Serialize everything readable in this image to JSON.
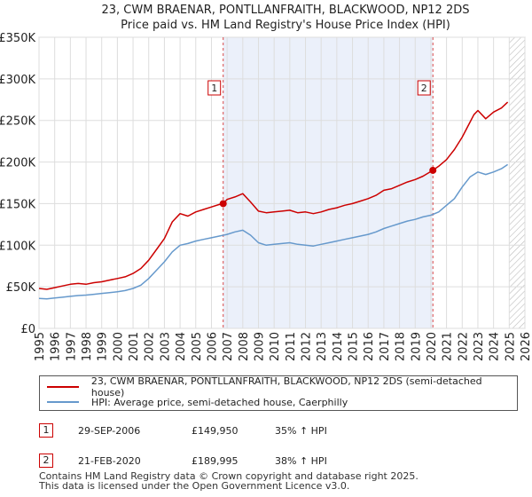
{
  "chart_data": {
    "type": "line",
    "title": "23, CWM BRAENAR, PONTLLANFRAITH, BLACKWOOD, NP12 2DS",
    "subtitle": "Price paid vs. HM Land Registry's House Price Index (HPI)",
    "xlabel": "",
    "ylabel": "",
    "xlim": [
      1995,
      2026
    ],
    "ylim": [
      0,
      350000
    ],
    "grid": true,
    "x_ticks": [
      "1995",
      "1996",
      "1997",
      "1998",
      "1999",
      "2000",
      "2001",
      "2002",
      "2003",
      "2004",
      "2005",
      "2006",
      "2007",
      "2008",
      "2009",
      "2010",
      "2011",
      "2012",
      "2013",
      "2014",
      "2015",
      "2016",
      "2017",
      "2018",
      "2019",
      "2020",
      "2021",
      "2022",
      "2023",
      "2024",
      "2025",
      "2026"
    ],
    "y_ticks": [
      {
        "value": 0,
        "label": "£0"
      },
      {
        "value": 50000,
        "label": "£50K"
      },
      {
        "value": 100000,
        "label": "£100K"
      },
      {
        "value": 150000,
        "label": "£150K"
      },
      {
        "value": 200000,
        "label": "£200K"
      },
      {
        "value": 250000,
        "label": "£250K"
      },
      {
        "value": 300000,
        "label": "£300K"
      },
      {
        "value": 350000,
        "label": "£350K"
      }
    ],
    "shaded_span": [
      2006.75,
      2020.13
    ],
    "future_hatch_from": 2025.0,
    "series": [
      {
        "name": "23, CWM BRAENAR, PONTLLANFRAITH, BLACKWOOD, NP12 2DS (semi-detached house)",
        "color": "#cc0000",
        "x": [
          1995.0,
          1995.5,
          1996.0,
          1996.5,
          1997.0,
          1997.5,
          1998.0,
          1998.5,
          1999.0,
          1999.5,
          2000.0,
          2000.5,
          2001.0,
          2001.5,
          2002.0,
          2002.5,
          2003.0,
          2003.5,
          2004.0,
          2004.5,
          2005.0,
          2005.5,
          2006.0,
          2006.5,
          2006.75,
          2007.0,
          2007.5,
          2008.0,
          2008.5,
          2009.0,
          2009.5,
          2010.0,
          2010.5,
          2011.0,
          2011.5,
          2012.0,
          2012.5,
          2013.0,
          2013.5,
          2014.0,
          2014.5,
          2015.0,
          2015.5,
          2016.0,
          2016.5,
          2017.0,
          2017.5,
          2018.0,
          2018.5,
          2019.0,
          2019.5,
          2020.13,
          2020.5,
          2021.0,
          2021.5,
          2022.0,
          2022.5,
          2022.75,
          2023.0,
          2023.5,
          2024.0,
          2024.5,
          2024.9
        ],
        "values": [
          48000,
          47000,
          49000,
          51000,
          53000,
          54000,
          53000,
          55000,
          56000,
          58000,
          60000,
          62000,
          66000,
          72000,
          82000,
          95000,
          108000,
          128000,
          138000,
          135000,
          140000,
          143000,
          146000,
          149000,
          149950,
          155000,
          158000,
          162000,
          152000,
          141000,
          139000,
          140000,
          141000,
          142000,
          139000,
          140000,
          138000,
          140000,
          143000,
          145000,
          148000,
          150000,
          153000,
          156000,
          160000,
          166000,
          168000,
          172000,
          176000,
          179000,
          183000,
          189995,
          195000,
          203000,
          215000,
          230000,
          248000,
          257000,
          262000,
          252000,
          260000,
          265000,
          272000
        ]
      },
      {
        "name": "HPI: Average price, semi-detached house, Caerphilly",
        "color": "#6699cc",
        "x": [
          1995.0,
          1995.5,
          1996.0,
          1996.5,
          1997.0,
          1997.5,
          1998.0,
          1998.5,
          1999.0,
          1999.5,
          2000.0,
          2000.5,
          2001.0,
          2001.5,
          2002.0,
          2002.5,
          2003.0,
          2003.5,
          2004.0,
          2004.5,
          2005.0,
          2005.5,
          2006.0,
          2006.5,
          2007.0,
          2007.5,
          2008.0,
          2008.5,
          2009.0,
          2009.5,
          2010.0,
          2010.5,
          2011.0,
          2011.5,
          2012.0,
          2012.5,
          2013.0,
          2013.5,
          2014.0,
          2014.5,
          2015.0,
          2015.5,
          2016.0,
          2016.5,
          2017.0,
          2017.5,
          2018.0,
          2018.5,
          2019.0,
          2019.5,
          2020.0,
          2020.5,
          2021.0,
          2021.5,
          2022.0,
          2022.5,
          2023.0,
          2023.5,
          2024.0,
          2024.5,
          2024.9
        ],
        "values": [
          36000,
          35500,
          36500,
          37500,
          38500,
          39500,
          40000,
          41000,
          42000,
          43000,
          44000,
          45500,
          48000,
          52000,
          60000,
          70000,
          80000,
          92000,
          100000,
          102000,
          105000,
          107000,
          109000,
          111000,
          113000,
          116000,
          118000,
          112000,
          103000,
          100000,
          101000,
          102000,
          103000,
          101000,
          100000,
          99000,
          101000,
          103000,
          105000,
          107000,
          109000,
          111000,
          113000,
          116000,
          120000,
          123000,
          126000,
          129000,
          131000,
          134000,
          136000,
          140000,
          148000,
          156000,
          170000,
          182000,
          188000,
          185000,
          188000,
          192000,
          197000
        ]
      }
    ],
    "annotations": [
      {
        "label": "1",
        "x": 2006.75,
        "value": 149950
      },
      {
        "label": "2",
        "x": 2020.13,
        "value": 189995
      }
    ]
  },
  "legend": {
    "series1": "23, CWM BRAENAR, PONTLLANFRAITH, BLACKWOOD, NP12 2DS (semi-detached house)",
    "series2": "HPI: Average price, semi-detached house, Caerphilly"
  },
  "sales": [
    {
      "num": "1",
      "date": "29-SEP-2006",
      "price": "£149,950",
      "hpi": "35% ↑ HPI"
    },
    {
      "num": "2",
      "date": "21-FEB-2020",
      "price": "£189,995",
      "hpi": "38% ↑ HPI"
    }
  ],
  "footer": {
    "line1": "Contains HM Land Registry data © Crown copyright and database right 2025.",
    "line2": "This data is licensed under the Open Government Licence v3.0."
  },
  "colors": {
    "red": "#cc0000",
    "blue": "#6699cc",
    "shade": "#dde6f7",
    "grid": "#dddddd"
  }
}
